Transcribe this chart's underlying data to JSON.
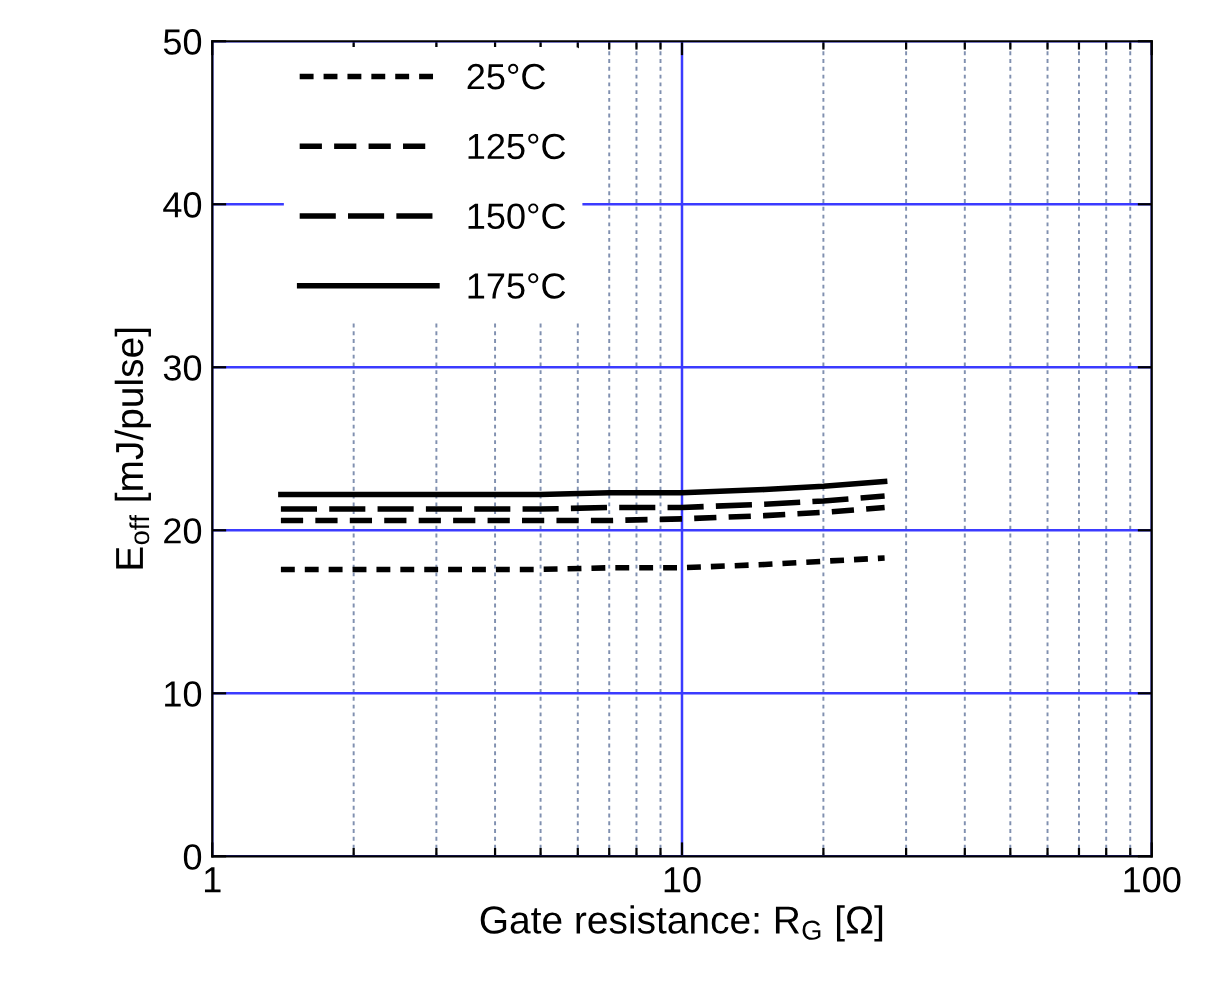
{
  "chart_data": {
    "type": "line",
    "xlabel": "Gate resistance: R$_{G}$ [Ω]",
    "ylabel": "E$_{off}$ [mJ/pulse]",
    "log": "x",
    "xlim": [
      1,
      100
    ],
    "xticks": [
      1,
      {
        "value": 2,
        "label": null
      },
      {
        "value": 3,
        "label": null
      },
      {
        "value": 4,
        "label": null
      },
      {
        "value": 5,
        "label": null
      },
      {
        "value": 6,
        "label": null
      },
      {
        "value": 7,
        "label": null
      },
      {
        "value": 8,
        "label": null
      },
      {
        "value": 9,
        "label": null
      },
      10,
      {
        "value": 20,
        "label": null
      },
      {
        "value": 30,
        "label": null
      },
      {
        "value": 40,
        "label": null
      },
      {
        "value": 50,
        "label": null
      },
      {
        "value": 60,
        "label": null
      },
      {
        "value": 70,
        "label": null
      },
      {
        "value": 80,
        "label": null
      },
      {
        "value": 90,
        "label": null
      },
      100
    ],
    "ylim": [
      0,
      50
    ],
    "yticks": [
      0,
      10,
      20,
      30,
      40,
      50
    ],
    "grid": true,
    "legend": "top left",
    "marker": "none",
    "series": [
      {
        "name": "25°C",
        "color": "#000000",
        "line_style": "dotted",
        "x": [
          1.4,
          2,
          3,
          5,
          7,
          10,
          15,
          20,
          27
        ],
        "values": [
          17.6,
          17.6,
          17.6,
          17.6,
          17.7,
          17.7,
          17.9,
          18.1,
          18.3
        ]
      },
      {
        "name": "125°C",
        "color": "#000000",
        "line_style": "dashed",
        "x": [
          1.4,
          2,
          3,
          5,
          7,
          10,
          15,
          20,
          27
        ],
        "values": [
          20.6,
          20.6,
          20.6,
          20.6,
          20.6,
          20.7,
          20.9,
          21.1,
          21.4
        ]
      },
      {
        "name": "150°C",
        "color": "#000000",
        "line_style": "dashed",
        "x": [
          1.4,
          2,
          3,
          5,
          7,
          10,
          15,
          20,
          27
        ],
        "values": [
          21.3,
          21.3,
          21.3,
          21.3,
          21.4,
          21.4,
          21.6,
          21.8,
          22.1
        ]
      },
      {
        "name": "175°C",
        "color": "#000000",
        "line_style": "solid",
        "x": [
          1.4,
          2,
          3,
          5,
          7,
          10,
          15,
          20,
          27
        ],
        "values": [
          22.2,
          22.2,
          22.2,
          22.2,
          22.3,
          22.3,
          22.5,
          22.7,
          23.0
        ]
      }
    ]
  }
}
